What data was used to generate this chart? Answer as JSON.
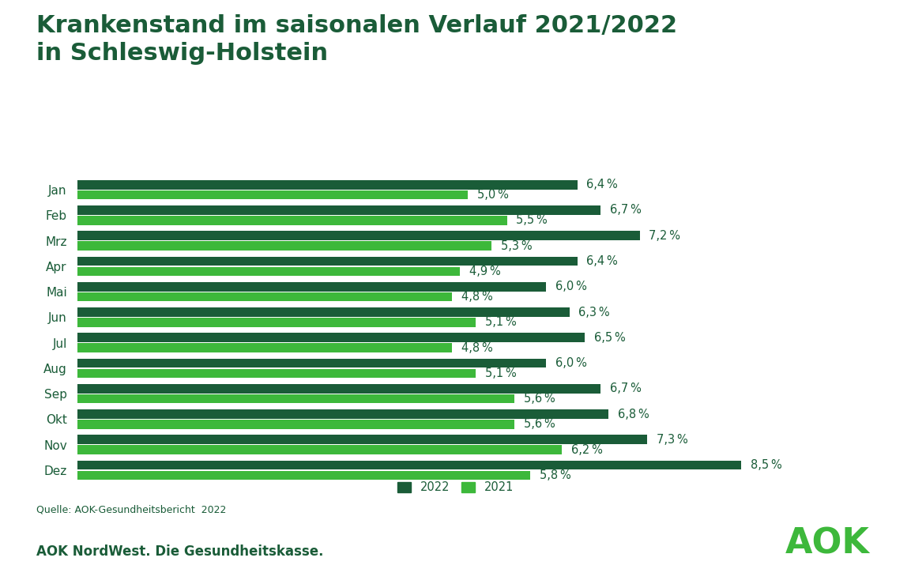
{
  "title_line1": "Krankenstand im saisonalen Verlauf 2021/2022",
  "title_line2": "in Schleswig-Holstein",
  "months": [
    "Jan",
    "Feb",
    "Mrz",
    "Apr",
    "Mai",
    "Jun",
    "Jul",
    "Aug",
    "Sep",
    "Okt",
    "Nov",
    "Dez"
  ],
  "values_2022": [
    6.4,
    6.7,
    7.2,
    6.4,
    6.0,
    6.3,
    6.5,
    6.0,
    6.7,
    6.8,
    7.3,
    8.5
  ],
  "values_2021": [
    5.0,
    5.5,
    5.3,
    4.9,
    4.8,
    5.1,
    4.8,
    5.1,
    5.6,
    5.6,
    6.2,
    5.8
  ],
  "color_2022": "#1a5c38",
  "color_2021": "#3db83b",
  "label_2022": "2022",
  "label_2021": "2021",
  "source_text": "Quelle: AOK-Gesundheitsbericht  2022",
  "footer_text": "AOK NordWest. Die Gesundheitskasse.",
  "aok_logo": "AOK",
  "title_color": "#1a5c38",
  "text_color": "#1a5c38",
  "background_color": "#ffffff",
  "bar_height": 0.36,
  "bar_gap": 0.04,
  "xlim": [
    0,
    9.8
  ],
  "title_fontsize": 22,
  "label_fontsize": 10.5,
  "tick_fontsize": 11,
  "source_fontsize": 9,
  "footer_fontsize": 12,
  "aok_fontsize": 32
}
